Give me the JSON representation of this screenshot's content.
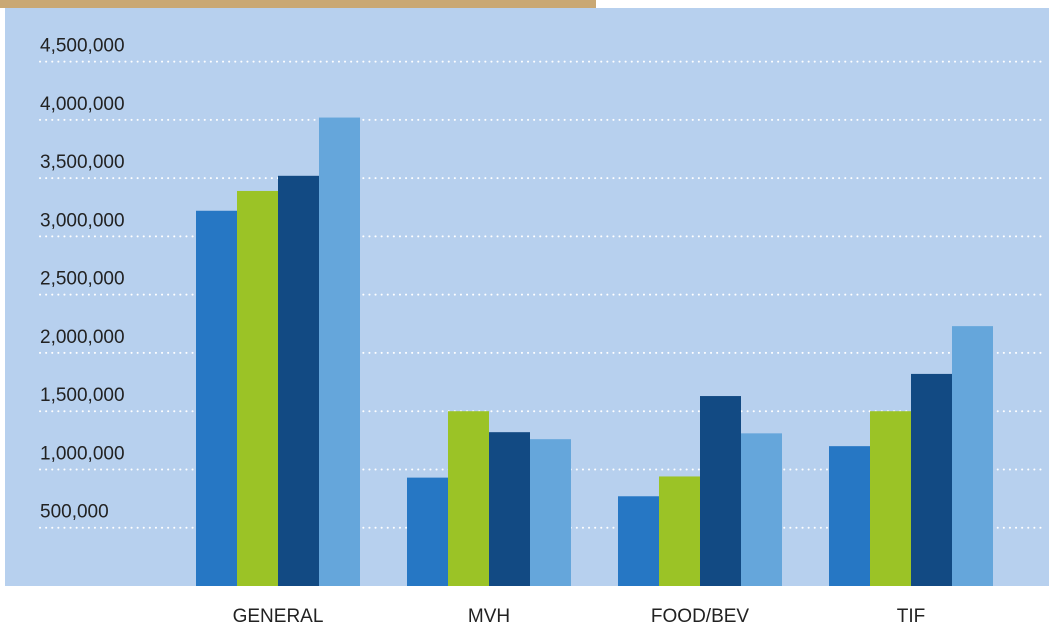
{
  "chart_data": {
    "type": "bar",
    "categories": [
      "GENERAL",
      "MVH",
      "FOOD/BEV",
      "TIF"
    ],
    "series": [
      {
        "color": "#2677c4",
        "values": [
          3220000,
          930000,
          770000,
          1200000
        ]
      },
      {
        "color": "#9bc326",
        "values": [
          3390000,
          1500000,
          940000,
          1500000
        ]
      },
      {
        "color": "#124a83",
        "values": [
          3520000,
          1320000,
          1630000,
          1820000
        ]
      },
      {
        "color": "#65a6db",
        "values": [
          4020000,
          1260000,
          1310000,
          2230000
        ]
      }
    ],
    "ylim": [
      0,
      4960000
    ],
    "yticks": [
      {
        "value": 500000,
        "label": "500,000"
      },
      {
        "value": 1000000,
        "label": "1,000,000"
      },
      {
        "value": 1500000,
        "label": "1,500,000"
      },
      {
        "value": 2000000,
        "label": "2,000,000"
      },
      {
        "value": 2500000,
        "label": "2,500,000"
      },
      {
        "value": 3000000,
        "label": "3,000,000"
      },
      {
        "value": 3500000,
        "label": "3,500,000"
      },
      {
        "value": 4000000,
        "label": "4,000,000"
      },
      {
        "value": 4500000,
        "label": "4,500,000"
      }
    ],
    "grid": true
  }
}
